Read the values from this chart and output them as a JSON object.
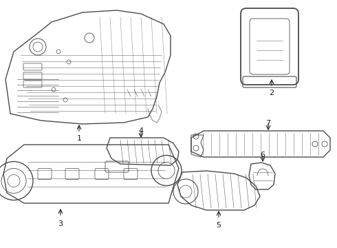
{
  "background_color": "#ffffff",
  "line_color": "#4a4a4a",
  "label_color": "#1a1a1a",
  "figsize": [
    4.9,
    3.6
  ],
  "dpi": 100,
  "xlim": [
    0,
    490
  ],
  "ylim": [
    0,
    360
  ]
}
